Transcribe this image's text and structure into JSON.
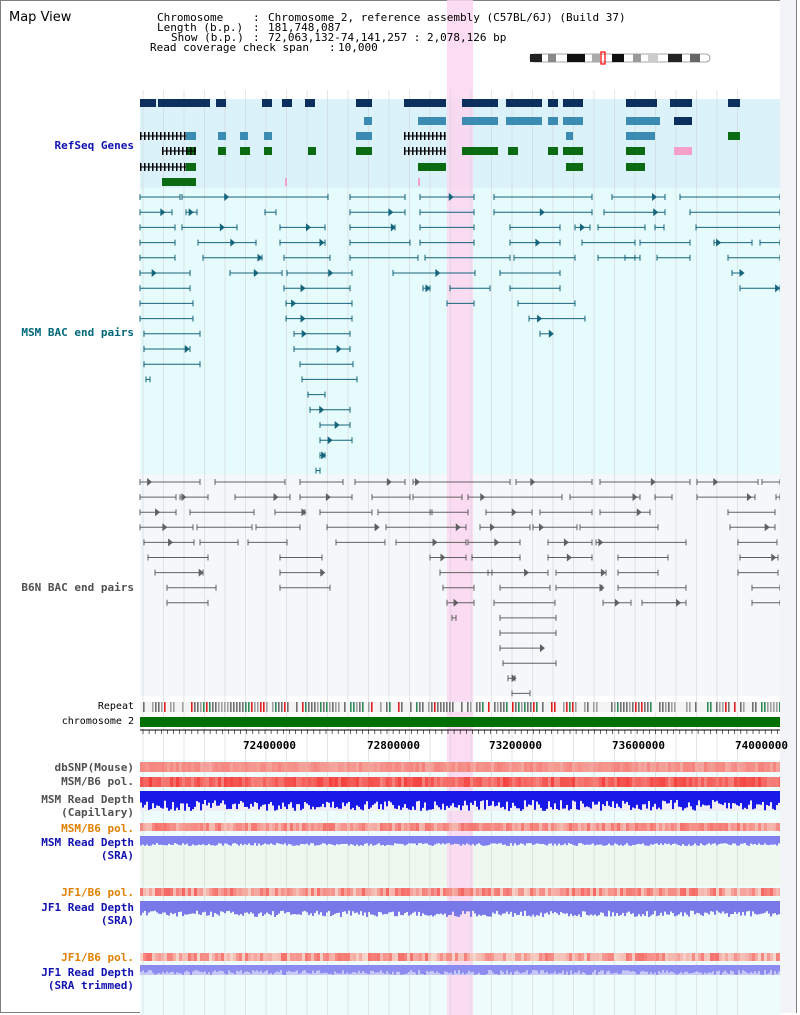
{
  "title": "Map View",
  "info": {
    "chromosome_key": "Chromosome",
    "chromosome_val": "Chromosome 2, reference assembly (C57BL/6J) (Build 37)",
    "length_key": "Length (b.p.)",
    "length_val": "181,748,087",
    "show_key": "Show (b.p.)",
    "show_val": "72,063,132-74,141,257 : 2,078,126 bp",
    "span_key": "Read coverage check span",
    "span_val": "10,000"
  },
  "tracks": {
    "refseq": "RefSeq Genes",
    "msm_bac": "MSM BAC end pairs",
    "b6n_bac": "B6N BAC end pairs",
    "repeat": "Repeat",
    "chromosome": "chromosome 2",
    "dbsnp": "dbSNP(Mouse)",
    "msm_b6_pol": "MSM/B6 pol.",
    "msm_depth_cap_1": "MSM Read Depth",
    "msm_depth_cap_2": "(Capillary)",
    "msm_b6_pol_sra": "MSM/B6 pol.",
    "msm_depth_sra_1": "MSM Read Depth",
    "msm_depth_sra_2": "(SRA)",
    "jf1_b6_pol": "JF1/B6 pol.",
    "jf1_depth_1": "JF1 Read Depth",
    "jf1_depth_2": "(SRA)",
    "jf1_b6_pol_trim": "JF1/B6 pol.",
    "jf1_depth_trim_1": "JF1 Read Depth",
    "jf1_depth_trim_2": "(SRA trimmed)"
  },
  "axis_ticks": [
    "72400000",
    "72800000",
    "73200000",
    "73600000",
    "74000000"
  ],
  "colors": {
    "refseq_bg": "#dcf2fb",
    "msm_bg": "#e6fbfb",
    "b6n_bg": "#f5f8fb",
    "highlight": "#fbd6f0",
    "gene_navy": "#0c2f5e",
    "gene_steel": "#3b8bb3",
    "gene_green": "#0b6b12",
    "gene_pink": "#f5a0c8",
    "bac_teal": "#14647c",
    "bac_gray": "#606060",
    "chromosome_bar": "#007000",
    "label_blue": "#1010b0",
    "label_orange": "#e08000",
    "label_teal": "#006878"
  }
}
